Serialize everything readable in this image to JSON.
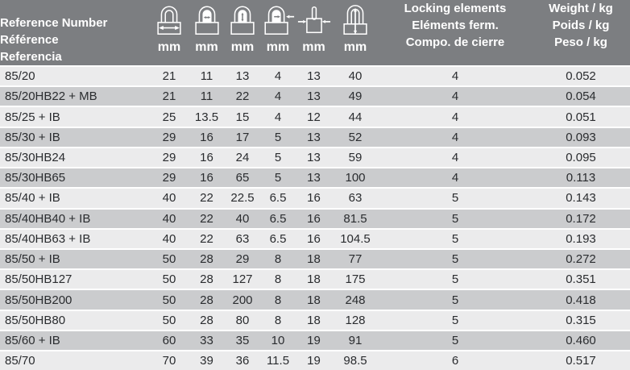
{
  "colors": {
    "header_bg": "#7c7e81",
    "row_light": "#ebebec",
    "row_dark": "#cbccce",
    "separator": "#ffffff",
    "header_text": "#ffffff",
    "body_text": "#2a2c2f"
  },
  "table": {
    "header": {
      "reference": [
        "Reference Number",
        "Référence",
        "Referencia"
      ],
      "dimension_columns": [
        {
          "icon": "body-width-icon",
          "unit": "mm"
        },
        {
          "icon": "shackle-inner-width-icon",
          "unit": "mm"
        },
        {
          "icon": "shackle-inner-height-icon",
          "unit": "mm"
        },
        {
          "icon": "shackle-diameter-icon",
          "unit": "mm"
        },
        {
          "icon": "body-depth-icon",
          "unit": "mm"
        },
        {
          "icon": "total-height-icon",
          "unit": "mm"
        }
      ],
      "locking_elements": [
        "Locking elements",
        "Eléments ferm.",
        "Compo. de cierre"
      ],
      "weight": [
        "Weight / kg",
        "Poids / kg",
        "Peso / kg"
      ]
    },
    "rows": [
      {
        "reference": "85/20",
        "dimensions_mm": [
          "21",
          "11",
          "13",
          "4",
          "13",
          "40"
        ],
        "locking_elements": "4",
        "weight_kg": "0.052"
      },
      {
        "reference": "85/20HB22 + MB",
        "dimensions_mm": [
          "21",
          "11",
          "22",
          "4",
          "13",
          "49"
        ],
        "locking_elements": "4",
        "weight_kg": "0.054"
      },
      {
        "reference": "85/25 + IB",
        "dimensions_mm": [
          "25",
          "13.5",
          "15",
          "4",
          "12",
          "44"
        ],
        "locking_elements": "4",
        "weight_kg": "0.051"
      },
      {
        "reference": "85/30 + IB",
        "dimensions_mm": [
          "29",
          "16",
          "17",
          "5",
          "13",
          "52"
        ],
        "locking_elements": "4",
        "weight_kg": "0.093"
      },
      {
        "reference": "85/30HB24",
        "dimensions_mm": [
          "29",
          "16",
          "24",
          "5",
          "13",
          "59"
        ],
        "locking_elements": "4",
        "weight_kg": "0.095"
      },
      {
        "reference": "85/30HB65",
        "dimensions_mm": [
          "29",
          "16",
          "65",
          "5",
          "13",
          "100"
        ],
        "locking_elements": "4",
        "weight_kg": "0.113"
      },
      {
        "reference": "85/40 + IB",
        "dimensions_mm": [
          "40",
          "22",
          "22.5",
          "6.5",
          "16",
          "63"
        ],
        "locking_elements": "5",
        "weight_kg": "0.143"
      },
      {
        "reference": "85/40HB40 + IB",
        "dimensions_mm": [
          "40",
          "22",
          "40",
          "6.5",
          "16",
          "81.5"
        ],
        "locking_elements": "5",
        "weight_kg": "0.172"
      },
      {
        "reference": "85/40HB63 + IB",
        "dimensions_mm": [
          "40",
          "22",
          "63",
          "6.5",
          "16",
          "104.5"
        ],
        "locking_elements": "5",
        "weight_kg": "0.193"
      },
      {
        "reference": "85/50 + IB",
        "dimensions_mm": [
          "50",
          "28",
          "29",
          "8",
          "18",
          "77"
        ],
        "locking_elements": "5",
        "weight_kg": "0.272"
      },
      {
        "reference": "85/50HB127",
        "dimensions_mm": [
          "50",
          "28",
          "127",
          "8",
          "18",
          "175"
        ],
        "locking_elements": "5",
        "weight_kg": "0.351"
      },
      {
        "reference": "85/50HB200",
        "dimensions_mm": [
          "50",
          "28",
          "200",
          "8",
          "18",
          "248"
        ],
        "locking_elements": "5",
        "weight_kg": "0.418"
      },
      {
        "reference": "85/50HB80",
        "dimensions_mm": [
          "50",
          "28",
          "80",
          "8",
          "18",
          "128"
        ],
        "locking_elements": "5",
        "weight_kg": "0.315"
      },
      {
        "reference": "85/60 + IB",
        "dimensions_mm": [
          "60",
          "33",
          "35",
          "10",
          "19",
          "91"
        ],
        "locking_elements": "5",
        "weight_kg": "0.460"
      },
      {
        "reference": "85/70",
        "dimensions_mm": [
          "70",
          "39",
          "36",
          "11.5",
          "19",
          "98.5"
        ],
        "locking_elements": "6",
        "weight_kg": "0.517"
      }
    ]
  }
}
